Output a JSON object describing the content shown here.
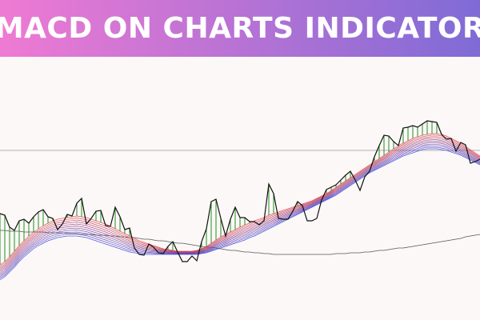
{
  "banner": {
    "title": "MACD ON CHARTS INDICATOR",
    "gradient_start": "#ef7ad3",
    "gradient_end": "#7f6bd6",
    "text_color": "#ffffff"
  },
  "chart_data": {
    "type": "line",
    "grid": false,
    "background": "#fdf8f8",
    "colors": {
      "macd_line": "#111111",
      "histogram": "#1e8f1e",
      "signal_band_red": "#e23b3b",
      "signal_band_blue": "#2f3fd8",
      "slow_average": "#555555",
      "reference_line": "#9a9a9a"
    },
    "x": [
      0,
      6,
      12,
      18,
      24,
      30,
      36,
      42,
      48,
      54,
      60,
      66,
      72,
      78,
      84,
      90,
      96,
      102,
      108,
      114,
      120,
      126,
      132,
      138,
      144,
      150,
      156,
      162,
      168,
      174,
      180,
      186,
      192,
      198,
      204,
      210,
      216,
      222,
      228,
      234,
      240,
      246,
      252,
      258,
      264,
      270,
      276,
      282,
      288,
      294,
      300,
      306,
      312,
      318,
      324,
      330,
      336,
      342,
      348,
      354,
      360,
      366,
      372,
      378,
      384,
      390,
      396,
      402,
      408,
      414,
      420,
      426,
      432,
      438,
      444,
      450,
      456,
      462,
      468,
      474,
      480,
      486,
      492,
      498,
      504,
      510,
      516,
      522,
      528,
      534,
      540,
      546,
      552,
      558,
      564,
      570,
      576,
      582,
      588,
      594,
      600
    ],
    "series": [
      {
        "role": "macd_line",
        "values": [
          133,
          131,
          116,
          112,
          124,
          126,
          121,
          129,
          135,
          138,
          129,
          127,
          113,
          120,
          132,
          130,
          146,
          152,
          120,
          127,
          136,
          137,
          118,
          117,
          141,
          129,
          113,
          115,
          90,
          82,
          81,
          95,
          91,
          84,
          83,
          92,
          98,
          85,
          73,
          73,
          80,
          74,
          98,
          114,
          148,
          151,
          127,
          105,
          126,
          141,
          128,
          128,
          123,
          123,
          119,
          124,
          170,
          158,
          127,
          126,
          126,
          136,
          148,
          143,
          124,
          124,
          127,
          150,
          163,
          166,
          169,
          175,
          181,
          186,
          175,
          162,
          179,
          186,
          204,
          218,
          231,
          230,
          223,
          218,
          240,
          241,
          243,
          241,
          245,
          249,
          248,
          247,
          232,
          226,
          227,
          211,
          222,
          219,
          196,
          198,
          201
        ]
      },
      {
        "role": "signal_band_red",
        "values": [
          69,
          73,
          79,
          86,
          93,
          99,
          105,
          110,
          114,
          118,
          121,
          124,
          126,
          127,
          128,
          129,
          130,
          129,
          128,
          126,
          124,
          122,
          120,
          117,
          114,
          111,
          108,
          105,
          102,
          99,
          97,
          95,
          93,
          91,
          89,
          88,
          87,
          86,
          86,
          86,
          86,
          87,
          89,
          92,
          96,
          100,
          104,
          107,
          110,
          113,
          116,
          119,
          121,
          124,
          126,
          128,
          131,
          133,
          135,
          137,
          139,
          141,
          143,
          145,
          147,
          149,
          152,
          155,
          158,
          162,
          166,
          170,
          174,
          178,
          182,
          186,
          190,
          194,
          198,
          202,
          206,
          210,
          214,
          218,
          221,
          224,
          227,
          229,
          231,
          232,
          233,
          233,
          232,
          230,
          227,
          224,
          221,
          217,
          213,
          209,
          205
        ]
      },
      {
        "role": "signal_band_blue",
        "values": [
          50,
          54,
          60,
          66,
          73,
          79,
          84,
          89,
          93,
          96,
          99,
          101,
          103,
          104,
          105,
          105,
          105,
          104,
          103,
          101,
          99,
          97,
          95,
          93,
          91,
          89,
          87,
          85,
          84,
          83,
          82,
          82,
          82,
          82,
          82,
          82,
          82,
          82,
          82,
          82,
          82,
          82,
          83,
          84,
          86,
          88,
          90,
          92,
          94,
          96,
          98,
          100,
          103,
          105,
          108,
          111,
          114,
          117,
          120,
          123,
          126,
          129,
          132,
          135,
          138,
          141,
          144,
          147,
          150,
          153,
          156,
          160,
          164,
          168,
          172,
          176,
          180,
          184,
          187,
          190,
          193,
          196,
          199,
          202,
          205,
          207,
          209,
          211,
          213,
          214,
          214,
          214,
          213,
          212,
          210,
          208,
          206,
          203,
          200,
          197,
          194
        ]
      },
      {
        "role": "slow_average",
        "values": [
          112,
          112,
          111,
          111,
          111,
          110,
          110,
          110,
          110,
          110,
          109,
          109,
          109,
          109,
          108,
          108,
          108,
          107,
          107,
          107,
          106,
          106,
          106,
          105,
          105,
          104,
          104,
          103,
          103,
          102,
          101,
          101,
          100,
          99,
          99,
          98,
          97,
          96,
          96,
          95,
          94,
          93,
          92,
          91,
          91,
          90,
          89,
          88,
          87,
          87,
          86,
          85,
          85,
          84,
          84,
          83,
          83,
          82,
          82,
          82,
          82,
          82,
          82,
          82,
          82,
          82,
          82,
          82,
          82,
          82,
          83,
          83,
          83,
          84,
          84,
          84,
          85,
          85,
          86,
          87,
          87,
          88,
          89,
          90,
          90,
          91,
          92,
          93,
          94,
          95,
          96,
          97,
          98,
          99,
          100,
          101,
          102,
          104,
          105,
          106,
          107
        ]
      }
    ],
    "reference_level": 212,
    "ylim": [
      0,
      329
    ],
    "xlim": [
      0,
      600
    ]
  }
}
